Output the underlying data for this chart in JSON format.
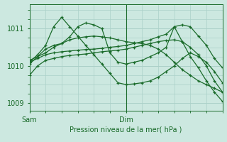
{
  "xlabel": "Pression niveau de la mer( hPa )",
  "ylim": [
    1008.8,
    1011.65
  ],
  "xlim": [
    0,
    48
  ],
  "yticks": [
    1009,
    1010,
    1011
  ],
  "xtick_positions": [
    0,
    24
  ],
  "xtick_labels": [
    "Sam",
    "Dim"
  ],
  "bg_color": "#cce8e0",
  "grid_color": "#aad0c8",
  "line_color": "#1a6b2a",
  "vline_x": 24,
  "series": [
    {
      "points": [
        [
          0,
          1009.75
        ],
        [
          2,
          1010.0
        ],
        [
          4,
          1010.15
        ],
        [
          6,
          1010.2
        ],
        [
          8,
          1010.25
        ],
        [
          10,
          1010.28
        ],
        [
          12,
          1010.3
        ],
        [
          14,
          1010.32
        ],
        [
          16,
          1010.35
        ],
        [
          18,
          1010.38
        ],
        [
          20,
          1010.4
        ],
        [
          22,
          1010.42
        ],
        [
          24,
          1010.45
        ],
        [
          26,
          1010.5
        ],
        [
          28,
          1010.55
        ],
        [
          30,
          1010.6
        ],
        [
          32,
          1010.65
        ],
        [
          34,
          1010.68
        ],
        [
          36,
          1010.7
        ],
        [
          38,
          1010.65
        ],
        [
          40,
          1010.5
        ],
        [
          42,
          1010.3
        ],
        [
          44,
          1010.0
        ],
        [
          46,
          1009.6
        ],
        [
          48,
          1009.3
        ]
      ]
    },
    {
      "points": [
        [
          0,
          1010.1
        ],
        [
          2,
          1010.2
        ],
        [
          4,
          1010.3
        ],
        [
          6,
          1010.35
        ],
        [
          8,
          1010.38
        ],
        [
          10,
          1010.4
        ],
        [
          12,
          1010.42
        ],
        [
          14,
          1010.44
        ],
        [
          16,
          1010.45
        ],
        [
          18,
          1010.47
        ],
        [
          20,
          1010.5
        ],
        [
          22,
          1010.52
        ],
        [
          24,
          1010.55
        ],
        [
          26,
          1010.6
        ],
        [
          28,
          1010.65
        ],
        [
          30,
          1010.7
        ],
        [
          32,
          1010.78
        ],
        [
          34,
          1010.85
        ],
        [
          36,
          1011.05
        ],
        [
          38,
          1011.1
        ],
        [
          40,
          1011.05
        ],
        [
          42,
          1010.8
        ],
        [
          44,
          1010.55
        ],
        [
          46,
          1010.2
        ],
        [
          48,
          1009.95
        ]
      ]
    },
    {
      "points": [
        [
          0,
          1010.15
        ],
        [
          2,
          1010.25
        ],
        [
          4,
          1010.35
        ],
        [
          6,
          1010.5
        ],
        [
          8,
          1010.6
        ],
        [
          10,
          1010.7
        ],
        [
          12,
          1010.75
        ],
        [
          14,
          1010.78
        ],
        [
          16,
          1010.8
        ],
        [
          18,
          1010.78
        ],
        [
          20,
          1010.75
        ],
        [
          22,
          1010.7
        ],
        [
          24,
          1010.65
        ],
        [
          26,
          1010.62
        ],
        [
          28,
          1010.6
        ],
        [
          30,
          1010.55
        ],
        [
          32,
          1010.45
        ],
        [
          34,
          1010.3
        ],
        [
          36,
          1010.1
        ],
        [
          38,
          1009.9
        ],
        [
          40,
          1009.75
        ],
        [
          42,
          1009.6
        ],
        [
          44,
          1009.5
        ],
        [
          46,
          1009.4
        ],
        [
          48,
          1009.3
        ]
      ]
    },
    {
      "points": [
        [
          0,
          1010.1
        ],
        [
          2,
          1010.3
        ],
        [
          4,
          1010.55
        ],
        [
          6,
          1011.05
        ],
        [
          8,
          1011.3
        ],
        [
          10,
          1011.05
        ],
        [
          12,
          1010.8
        ],
        [
          14,
          1010.55
        ],
        [
          16,
          1010.3
        ],
        [
          18,
          1010.05
        ],
        [
          20,
          1009.8
        ],
        [
          22,
          1009.55
        ],
        [
          24,
          1009.5
        ],
        [
          26,
          1009.52
        ],
        [
          28,
          1009.55
        ],
        [
          30,
          1009.6
        ],
        [
          32,
          1009.7
        ],
        [
          34,
          1009.85
        ],
        [
          36,
          1010.0
        ],
        [
          38,
          1010.2
        ],
        [
          40,
          1010.35
        ],
        [
          42,
          1010.25
        ],
        [
          44,
          1010.1
        ],
        [
          46,
          1009.85
        ],
        [
          48,
          1009.55
        ]
      ]
    },
    {
      "points": [
        [
          0,
          1010.05
        ],
        [
          2,
          1010.25
        ],
        [
          4,
          1010.45
        ],
        [
          6,
          1010.55
        ],
        [
          8,
          1010.6
        ],
        [
          10,
          1010.78
        ],
        [
          12,
          1011.05
        ],
        [
          14,
          1011.15
        ],
        [
          16,
          1011.1
        ],
        [
          18,
          1011.0
        ],
        [
          20,
          1010.35
        ],
        [
          22,
          1010.1
        ],
        [
          24,
          1010.05
        ],
        [
          26,
          1010.1
        ],
        [
          28,
          1010.15
        ],
        [
          30,
          1010.25
        ],
        [
          32,
          1010.35
        ],
        [
          34,
          1010.5
        ],
        [
          36,
          1011.05
        ],
        [
          38,
          1010.65
        ],
        [
          40,
          1010.25
        ],
        [
          42,
          1009.95
        ],
        [
          44,
          1009.6
        ],
        [
          46,
          1009.3
        ],
        [
          48,
          1009.05
        ]
      ]
    }
  ]
}
